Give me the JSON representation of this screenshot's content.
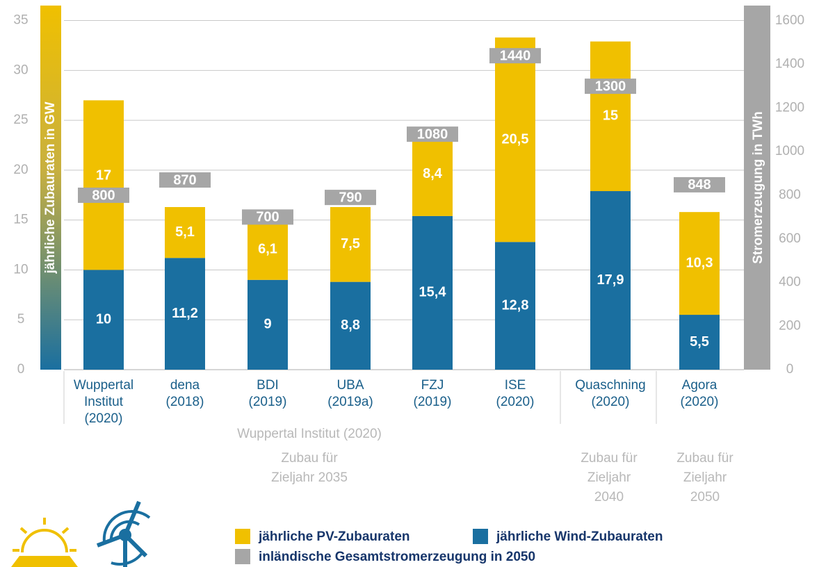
{
  "chart_data": {
    "type": "stacked_bar",
    "ylabel": "jährliche Zubauraten in GW",
    "y2label": "Stromerzeugung in TWh",
    "categories": [
      [
        "Wuppertal",
        "Institut",
        "(2020)"
      ],
      [
        "dena",
        "(2018)"
      ],
      [
        "BDI",
        "(2019)"
      ],
      [
        "UBA",
        "(2019a)"
      ],
      [
        "FZJ",
        "(2019)"
      ],
      [
        "ISE",
        "(2020)"
      ],
      [
        "Quaschning",
        "(2020)"
      ],
      [
        "Agora",
        "(2020)"
      ]
    ],
    "series": [
      {
        "name": "jährliche Wind-Zubauraten",
        "color": "#1a6fa0",
        "values": [
          10,
          11.2,
          9,
          8.8,
          15.4,
          12.8,
          17.9,
          5.5
        ],
        "value_labels": [
          "10",
          "11,2",
          "9",
          "8,8",
          "15,4",
          "12,8",
          "17,9",
          "5,5"
        ]
      },
      {
        "name": "jährliche PV-Zubauraten",
        "color": "#f0c000",
        "values": [
          17,
          5.1,
          6.1,
          7.5,
          8.4,
          20.5,
          15,
          10.3
        ],
        "value_labels": [
          "17",
          "5,1",
          "6,1",
          "7,5",
          "8,4",
          "20,5",
          "15",
          "10,3"
        ]
      },
      {
        "name": "inländische Gesamtstromerzeugung in 2050",
        "color": "#a6a6a6",
        "axis": "y2",
        "values": [
          800,
          870,
          700,
          790,
          1080,
          1440,
          1300,
          848
        ]
      }
    ],
    "ylim": [
      0,
      36.5
    ],
    "yticks": [
      0,
      5,
      10,
      15,
      20,
      25,
      30,
      35
    ],
    "y2lim": [
      0,
      1670
    ],
    "y2ticks": [
      0,
      200,
      400,
      600,
      800,
      1000,
      1200,
      1400,
      1600
    ],
    "grid": true,
    "annotations": [
      {
        "lines": [
          "Wuppertal Institut (2020)"
        ]
      },
      {
        "lines": [
          "Zubau für",
          "Zieljahr 2035"
        ]
      },
      {
        "lines": [
          "Zubau für",
          "Zieljahr",
          "2040"
        ]
      },
      {
        "lines": [
          "Zubau für",
          "Zieljahr",
          "2050"
        ]
      }
    ]
  }
}
